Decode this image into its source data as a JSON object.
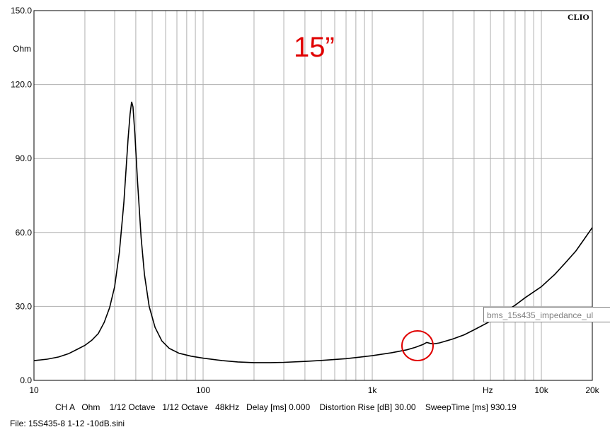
{
  "chart_data": {
    "type": "line",
    "brand": "CLIO",
    "annotation": "15”",
    "yunit": "Ohm",
    "xunit": "Hz",
    "xscale": "log",
    "xlim": [
      10,
      20000
    ],
    "ylim": [
      0,
      150
    ],
    "grid": true,
    "yticks": [
      {
        "value": 150,
        "label": "150.0"
      },
      {
        "value": 120,
        "label": "120.0"
      },
      {
        "value": 90,
        "label": "90.0"
      },
      {
        "value": 60,
        "label": "60.0"
      },
      {
        "value": 30,
        "label": "30.0"
      },
      {
        "value": 0,
        "label": "0.0"
      }
    ],
    "xticks": [
      {
        "value": 10,
        "label": "10"
      },
      {
        "value": 100,
        "label": "100"
      },
      {
        "value": 1000,
        "label": "1k"
      },
      {
        "value": 10000,
        "label": "10k"
      },
      {
        "value": 20000,
        "label": "20k"
      }
    ],
    "series": [
      {
        "color": "#000000",
        "points": [
          [
            10,
            8.0
          ],
          [
            12,
            8.6
          ],
          [
            14,
            9.5
          ],
          [
            16,
            10.8
          ],
          [
            18,
            12.6
          ],
          [
            20,
            14.2
          ],
          [
            22,
            16.3
          ],
          [
            24,
            19.0
          ],
          [
            26,
            23.5
          ],
          [
            28,
            29.5
          ],
          [
            30,
            38.0
          ],
          [
            32,
            52.0
          ],
          [
            34,
            72.0
          ],
          [
            35,
            85.0
          ],
          [
            36,
            98.0
          ],
          [
            37,
            108.0
          ],
          [
            37.8,
            113.0
          ],
          [
            38.5,
            111.0
          ],
          [
            39.5,
            100.0
          ],
          [
            41,
            80.0
          ],
          [
            43,
            58.0
          ],
          [
            45,
            43.0
          ],
          [
            48,
            30.0
          ],
          [
            52,
            21.5
          ],
          [
            57,
            16.0
          ],
          [
            63,
            13.0
          ],
          [
            72,
            11.0
          ],
          [
            85,
            9.8
          ],
          [
            100,
            9.0
          ],
          [
            130,
            8.0
          ],
          [
            160,
            7.5
          ],
          [
            200,
            7.2
          ],
          [
            250,
            7.2
          ],
          [
            300,
            7.3
          ],
          [
            400,
            7.7
          ],
          [
            500,
            8.1
          ],
          [
            700,
            8.8
          ],
          [
            1000,
            10.0
          ],
          [
            1300,
            11.2
          ],
          [
            1600,
            12.4
          ],
          [
            1800,
            13.4
          ],
          [
            2000,
            14.6
          ],
          [
            2100,
            15.4
          ],
          [
            2200,
            15.0
          ],
          [
            2300,
            14.8
          ],
          [
            2500,
            15.2
          ],
          [
            3000,
            16.8
          ],
          [
            3500,
            18.5
          ],
          [
            4000,
            20.5
          ],
          [
            5000,
            24.0
          ],
          [
            6000,
            27.5
          ],
          [
            7000,
            30.5
          ],
          [
            8000,
            33.5
          ],
          [
            10000,
            38.0
          ],
          [
            12000,
            43.0
          ],
          [
            14000,
            48.0
          ],
          [
            16000,
            52.5
          ],
          [
            18000,
            57.5
          ],
          [
            20000,
            62.0
          ]
        ]
      }
    ]
  },
  "status_line": "CH A   Ohm    1/12 Octave   1/12 Octave   48kHz   Delay [ms] 0.000    Distortion Rise [dB] 30.00    SweepTime [ms] 930.19",
  "file_line": "File: 15S435-8 1-12 -10dB.sini",
  "tooltip": "bms_15s435_impedance_ul"
}
